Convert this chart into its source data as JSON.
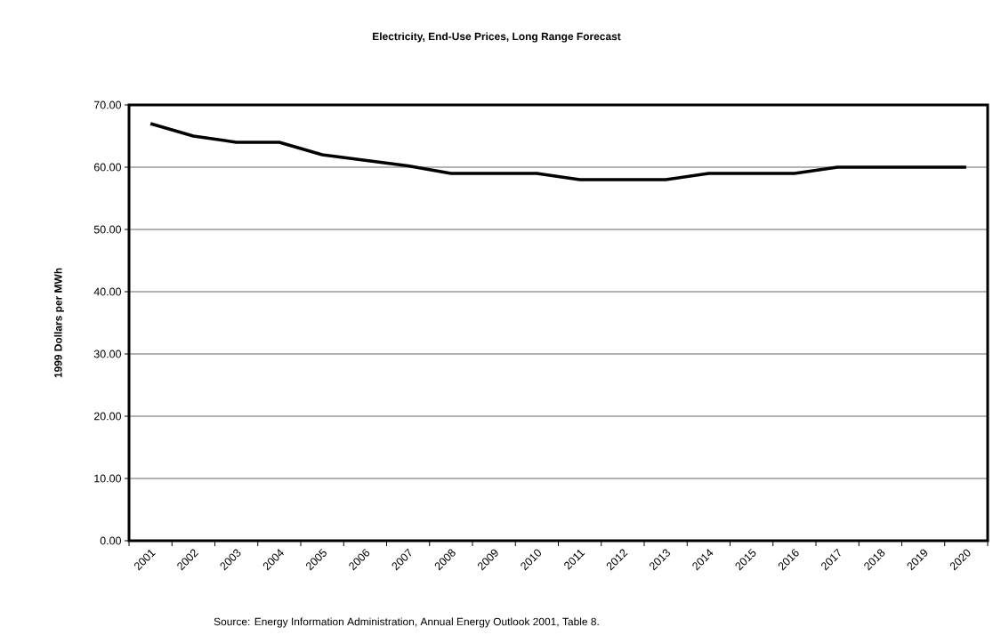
{
  "chart_data": {
    "type": "line",
    "title": "Electricity, End-Use Prices, Long Range Forecast",
    "ylabel": "1999 Dollars per MWh",
    "categories": [
      "2001",
      "2002",
      "2003",
      "2004",
      "2005",
      "2006",
      "2007",
      "2008",
      "2009",
      "2010",
      "2011",
      "2012",
      "2013",
      "2014",
      "2015",
      "2016",
      "2017",
      "2018",
      "2019",
      "2020"
    ],
    "series": [
      {
        "color": "#000000",
        "values": [
          67,
          65,
          64,
          64,
          62,
          61.1,
          60.2,
          59,
          59,
          59,
          58,
          58,
          58,
          59,
          59,
          59,
          60,
          60,
          60,
          60
        ]
      }
    ],
    "ylim": [
      0,
      70
    ],
    "yticks": [
      {
        "value": 0,
        "label": "0.00"
      },
      {
        "value": 10,
        "label": "10.00"
      },
      {
        "value": 20,
        "label": "20.00"
      },
      {
        "value": 30,
        "label": "30.00"
      },
      {
        "value": 40,
        "label": "40.00"
      },
      {
        "value": 50,
        "label": "50.00"
      },
      {
        "value": 60,
        "label": "60.00"
      },
      {
        "value": 70,
        "label": "70.00"
      }
    ],
    "grid": "y",
    "marker": "none",
    "line_style": "solid",
    "annotations": [
      "Source: Energy Information Administration, Annual Energy Outlook 2001, Table 8."
    ]
  }
}
